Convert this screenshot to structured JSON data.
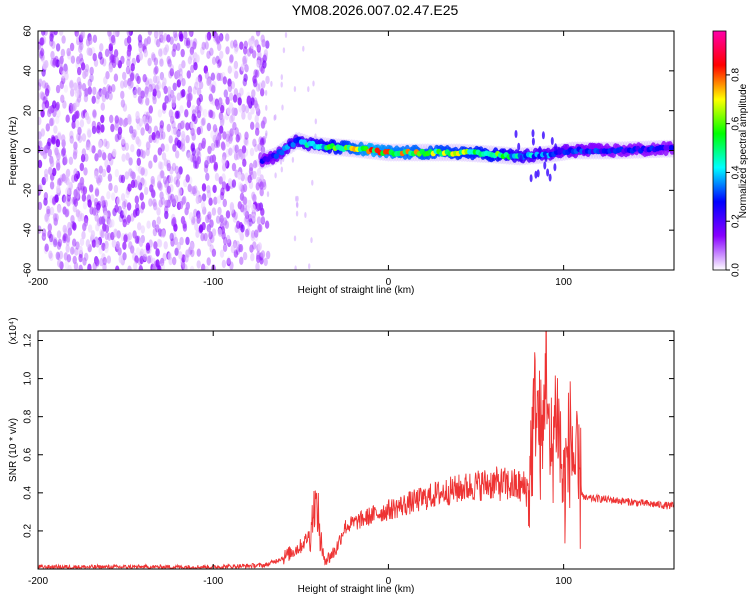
{
  "title": "YM08.2026.007.02.47.E25",
  "chart_data": [
    {
      "type": "heatmap",
      "xlabel": "Height of straight line (km)",
      "ylabel": "Frequency (Hz)",
      "xlim": [
        -200,
        163
      ],
      "ylim": [
        -60,
        60
      ],
      "x_ticks": [
        -200,
        -100,
        0,
        100
      ],
      "y_ticks": [
        60,
        40,
        20,
        0,
        -20,
        -40,
        -60
      ],
      "colorbar": {
        "label": "Normalized spectral amplitude",
        "range": [
          0.0,
          0.98
        ],
        "ticks": [
          "0.0",
          "0.2",
          "0.4",
          "0.6",
          "0.8"
        ],
        "colormap": [
          "#ffffff",
          "#8800ff",
          "#0000ff",
          "#00ffff",
          "#00ff00",
          "#ffff00",
          "#ff0000",
          "#ff00aa"
        ]
      },
      "noise_region_x": [
        -200,
        -72
      ],
      "signal_band": [
        {
          "x": -72,
          "f": -5,
          "amp": 0.3
        },
        {
          "x": -65,
          "f": -3,
          "amp": 0.35
        },
        {
          "x": -52,
          "f": 5,
          "amp": 0.45
        },
        {
          "x": -45,
          "f": 3,
          "amp": 0.5
        },
        {
          "x": -35,
          "f": 2,
          "amp": 0.6
        },
        {
          "x": -20,
          "f": 1,
          "amp": 0.75
        },
        {
          "x": -10,
          "f": 0,
          "amp": 0.85
        },
        {
          "x": 0,
          "f": -1,
          "amp": 0.8
        },
        {
          "x": 20,
          "f": -1,
          "amp": 0.75
        },
        {
          "x": 40,
          "f": -1,
          "amp": 0.7
        },
        {
          "x": 60,
          "f": -2,
          "amp": 0.65
        },
        {
          "x": 75,
          "f": -3,
          "amp": 0.5
        },
        {
          "x": 90,
          "f": -2,
          "amp": 0.4
        },
        {
          "x": 105,
          "f": 0,
          "amp": 0.35
        },
        {
          "x": 130,
          "f": 0,
          "amp": 0.3
        },
        {
          "x": 163,
          "f": 1,
          "amp": 0.3
        }
      ]
    },
    {
      "type": "line",
      "xlabel": "Height of straight line (km)",
      "ylabel": "SNR (10 * v/v)",
      "scale_label": "(x10⁴)",
      "xlim": [
        -200,
        163
      ],
      "ylim": [
        0,
        1.25
      ],
      "x_ticks": [
        -200,
        -100,
        0,
        100
      ],
      "y_ticks": [
        "1.2",
        "1.0",
        "0.8",
        "0.6",
        "0.4",
        "0.2"
      ],
      "series": [
        {
          "color": "#ee3333",
          "x": [
            -200,
            -150,
            -100,
            -70,
            -60,
            -50,
            -45,
            -42,
            -40,
            -38,
            -35,
            -30,
            -25,
            -20,
            -10,
            0,
            10,
            20,
            30,
            40,
            50,
            60,
            70,
            80,
            84,
            88,
            90,
            92,
            96,
            100,
            104,
            108,
            112,
            120,
            140,
            163
          ],
          "y": [
            0.01,
            0.01,
            0.01,
            0.02,
            0.06,
            0.12,
            0.18,
            0.35,
            0.28,
            0.08,
            0.05,
            0.1,
            0.22,
            0.24,
            0.28,
            0.31,
            0.34,
            0.37,
            0.4,
            0.42,
            0.44,
            0.45,
            0.44,
            0.42,
            0.9,
            0.6,
            1.22,
            0.5,
            0.88,
            0.4,
            0.7,
            0.45,
            0.37,
            0.37,
            0.35,
            0.33
          ]
        }
      ]
    }
  ]
}
